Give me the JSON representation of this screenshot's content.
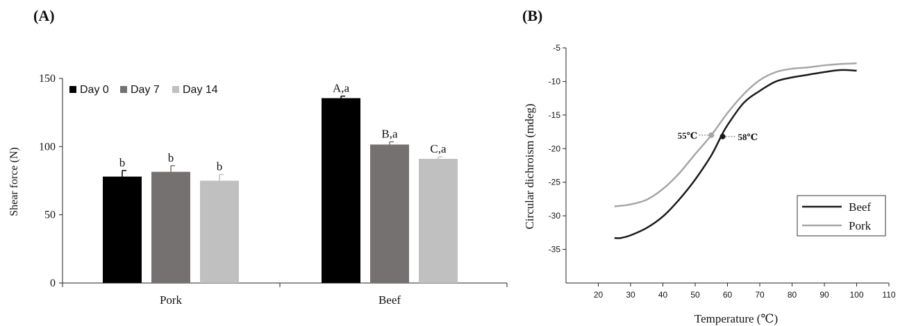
{
  "panels": {
    "a_label": "(A)",
    "b_label": "(B)"
  },
  "chart_data": [
    {
      "type": "bar",
      "ylabel": "Shear force (N)",
      "xlabel": "",
      "ylim": [
        0,
        150
      ],
      "yticks": [
        0,
        50,
        100,
        150
      ],
      "categories": [
        "Pork",
        "Beef"
      ],
      "legend_position": "top-left",
      "series": [
        {
          "name": "Day 0",
          "color": "#000000",
          "values": [
            78,
            135.5
          ],
          "errors": [
            4.5,
            1.5
          ],
          "letters": [
            "b",
            "A,a"
          ]
        },
        {
          "name": "Day 7",
          "color": "#767171",
          "values": [
            81.5,
            101.5
          ],
          "errors": [
            4.5,
            2
          ],
          "letters": [
            "b",
            "B,a"
          ]
        },
        {
          "name": "Day 14",
          "color": "#c0c0c0",
          "values": [
            75,
            91
          ],
          "errors": [
            4.5,
            1.5
          ],
          "letters": [
            "b",
            "C,a"
          ]
        }
      ]
    },
    {
      "type": "line",
      "ylabel": "Circular dichroism (mdeg)",
      "xlabel": "Temperature (℃)",
      "xlim": [
        10,
        110
      ],
      "ylim": [
        -40,
        -5
      ],
      "xticks": [
        20,
        30,
        40,
        50,
        60,
        70,
        80,
        90,
        100,
        110
      ],
      "yticks": [
        -5,
        -10,
        -15,
        -20,
        -25,
        -30,
        -35
      ],
      "legend_position": "bottom-right",
      "series": [
        {
          "name": "Beef",
          "color": "#1a1a1a",
          "x": [
            25,
            27,
            30,
            35,
            40,
            45,
            50,
            55,
            58,
            60,
            65,
            70,
            75,
            80,
            85,
            90,
            95,
            100
          ],
          "y": [
            -33.3,
            -33.3,
            -32.9,
            -31.8,
            -30.1,
            -27.6,
            -24.6,
            -21.0,
            -18.2,
            -16.5,
            -13.2,
            -11.4,
            -10.0,
            -9.4,
            -9.0,
            -8.6,
            -8.3,
            -8.4
          ]
        },
        {
          "name": "Pork",
          "color": "#a6a6a6",
          "x": [
            25,
            30,
            35,
            40,
            45,
            50,
            55,
            60,
            65,
            70,
            75,
            80,
            85,
            90,
            95,
            100
          ],
          "y": [
            -28.6,
            -28.3,
            -27.6,
            -26.0,
            -23.7,
            -20.8,
            -18.0,
            -14.7,
            -11.9,
            -9.8,
            -8.6,
            -8.1,
            -7.9,
            -7.6,
            -7.4,
            -7.3
          ]
        }
      ],
      "annotations": [
        {
          "label": "55℃",
          "x": 55,
          "y": -18.0,
          "series": "Pork",
          "side": "left"
        },
        {
          "label": "58℃",
          "x": 58.5,
          "y": -18.2,
          "series": "Beef",
          "side": "right"
        }
      ]
    }
  ]
}
